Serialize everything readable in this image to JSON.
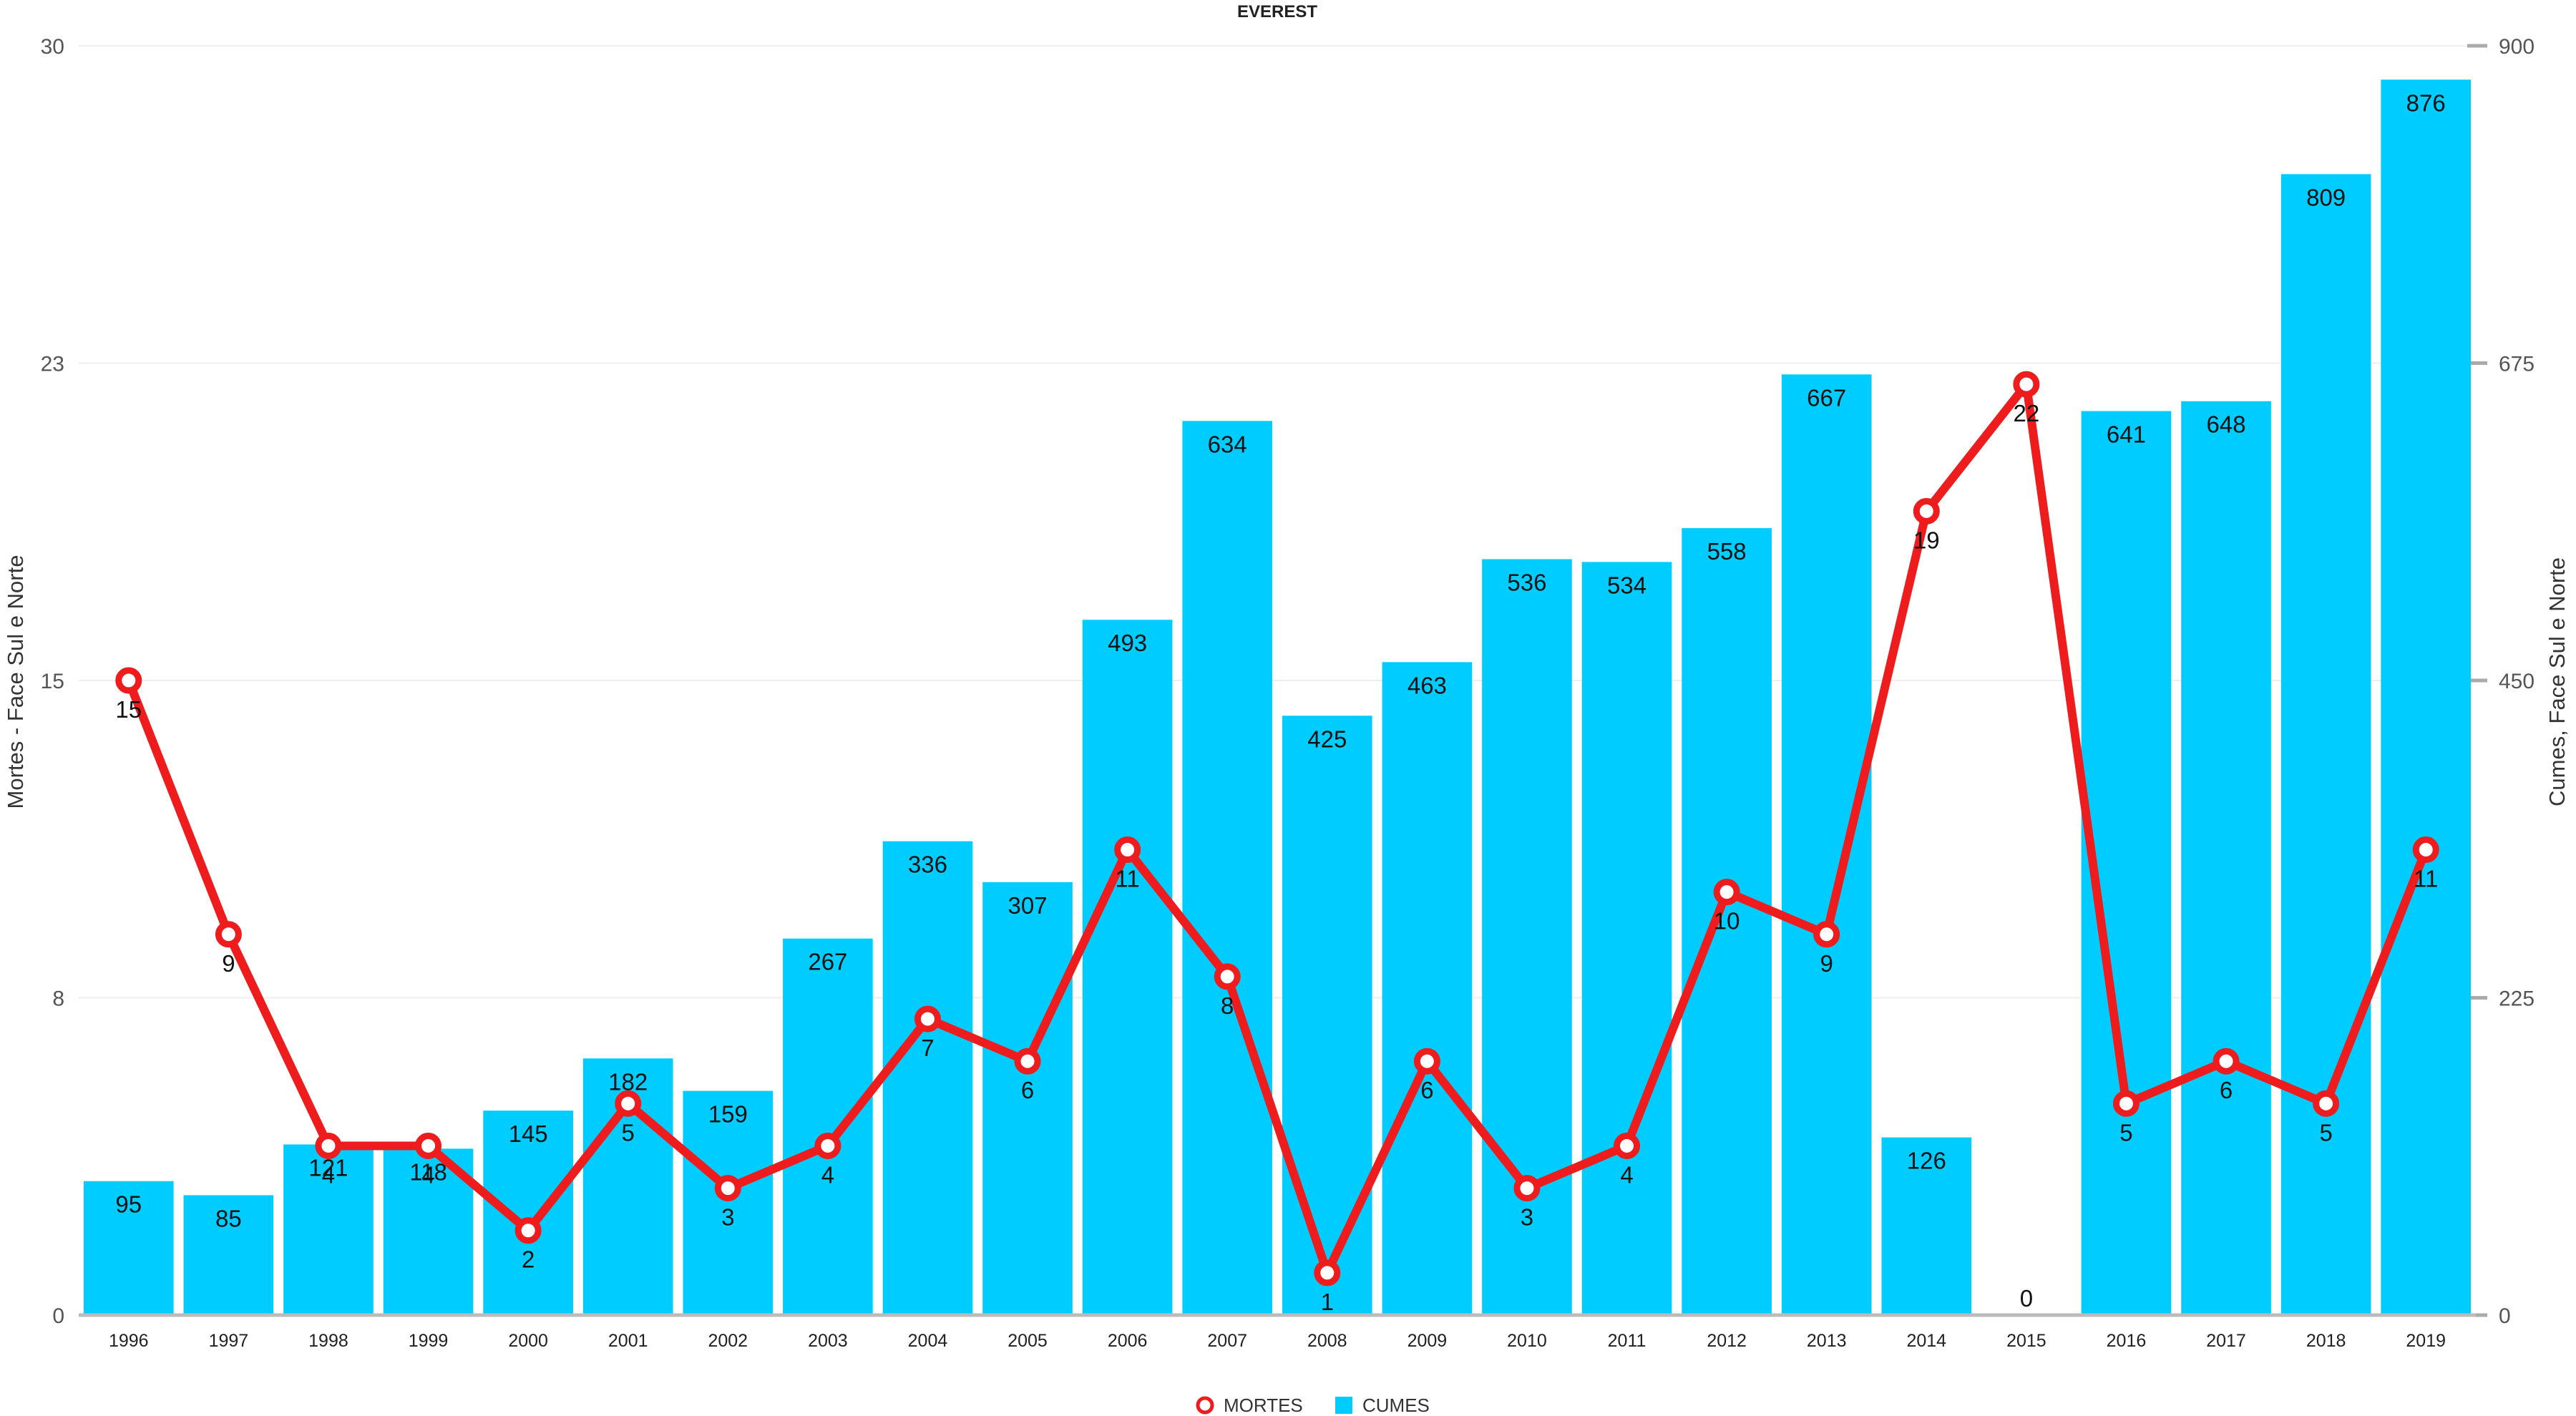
{
  "chart_data": {
    "type": "bar",
    "title": "EVEREST",
    "categories": [
      "1996",
      "1997",
      "1998",
      "1999",
      "2000",
      "2001",
      "2002",
      "2003",
      "2004",
      "2005",
      "2006",
      "2007",
      "2008",
      "2009",
      "2010",
      "2011",
      "2012",
      "2013",
      "2014",
      "2015",
      "2016",
      "2017",
      "2018",
      "2019"
    ],
    "series": [
      {
        "name": "CUMES",
        "type": "bar",
        "axis": "right",
        "color": "#00ccff",
        "values": [
          95,
          85,
          121,
          118,
          145,
          182,
          159,
          267,
          336,
          307,
          493,
          634,
          425,
          463,
          536,
          534,
          558,
          667,
          126,
          0,
          641,
          648,
          809,
          876
        ]
      },
      {
        "name": "MORTES",
        "type": "line",
        "axis": "left",
        "color": "#ee1c1c",
        "values": [
          15,
          9,
          4,
          4,
          2,
          5,
          3,
          4,
          7,
          6,
          11,
          8,
          1,
          6,
          3,
          4,
          10,
          9,
          19,
          22,
          5,
          6,
          5,
          11
        ]
      }
    ],
    "y_left": {
      "label": "Mortes - Face Sul e Norte",
      "range": [
        0,
        30
      ],
      "ticks": [
        "0",
        "8",
        "15",
        "23",
        "30"
      ]
    },
    "y_right": {
      "label": "Cumes, Face Sul e Norte",
      "range": [
        0,
        900
      ],
      "ticks": [
        "0",
        "225",
        "450",
        "675",
        "900"
      ]
    },
    "grid": true,
    "legend_position": "bottom-center"
  }
}
